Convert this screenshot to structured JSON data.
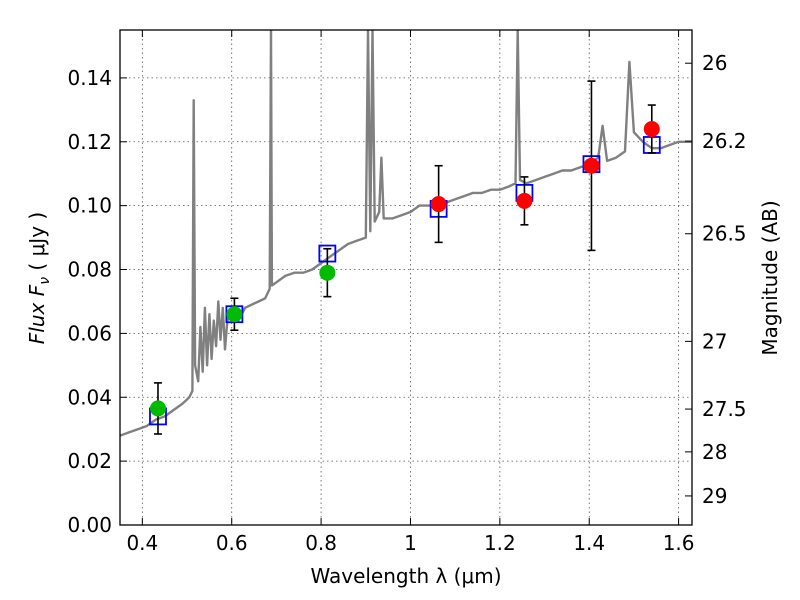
{
  "chart_data": {
    "type": "scatter",
    "xlabel": "Wavelength  λ (μm)",
    "ylabel": "Flux  F",
    "ylabel_sub": "ν",
    "ylabel_unit": "  ( μJy )",
    "y2label": "Magnitude (AB)",
    "xlim": [
      0.35,
      1.63
    ],
    "ylim": [
      0.0,
      0.155
    ],
    "grid": true,
    "x_ticks": [
      0.4,
      0.6,
      0.8,
      1.0,
      1.2,
      1.4,
      1.6
    ],
    "x_tick_labels": [
      "0.4",
      "0.6",
      "0.8",
      "1",
      "1.2",
      "1.4",
      "1.6"
    ],
    "y_ticks": [
      0.0,
      0.02,
      0.04,
      0.06,
      0.08,
      0.1,
      0.12,
      0.14
    ],
    "y_tick_labels": [
      "0.00",
      "0.02",
      "0.04",
      "0.06",
      "0.08",
      "0.10",
      "0.12",
      "0.14"
    ],
    "y2_ticks": [
      {
        "label": "26",
        "flux": 0.1446
      },
      {
        "label": "26.2",
        "flux": 0.1202
      },
      {
        "label": "26.5",
        "flux": 0.0912
      },
      {
        "label": "27",
        "flux": 0.0575
      },
      {
        "label": "27.5",
        "flux": 0.0363
      },
      {
        "label": "28",
        "flux": 0.0229
      },
      {
        "label": "29",
        "flux": 0.0091
      }
    ],
    "colors": {
      "model": "#808080",
      "green": "#00bb00",
      "red": "#ff0000",
      "box": "#0000ff",
      "errorbar": "#000000"
    },
    "model_spectrum": [
      [
        0.35,
        0.028
      ],
      [
        0.37,
        0.029
      ],
      [
        0.39,
        0.03
      ],
      [
        0.41,
        0.031
      ],
      [
        0.43,
        0.033
      ],
      [
        0.45,
        0.034
      ],
      [
        0.47,
        0.036
      ],
      [
        0.49,
        0.038
      ],
      [
        0.505,
        0.04
      ],
      [
        0.512,
        0.042
      ],
      [
        0.515,
        0.133
      ],
      [
        0.518,
        0.05
      ],
      [
        0.525,
        0.045
      ],
      [
        0.53,
        0.062
      ],
      [
        0.535,
        0.048
      ],
      [
        0.54,
        0.068
      ],
      [
        0.545,
        0.05
      ],
      [
        0.55,
        0.066
      ],
      [
        0.555,
        0.052
      ],
      [
        0.56,
        0.064
      ],
      [
        0.565,
        0.056
      ],
      [
        0.57,
        0.07
      ],
      [
        0.575,
        0.058
      ],
      [
        0.58,
        0.068
      ],
      [
        0.585,
        0.055
      ],
      [
        0.59,
        0.064
      ],
      [
        0.6,
        0.066
      ],
      [
        0.615,
        0.064
      ],
      [
        0.63,
        0.068
      ],
      [
        0.645,
        0.069
      ],
      [
        0.66,
        0.07
      ],
      [
        0.675,
        0.071
      ],
      [
        0.685,
        0.074
      ],
      [
        0.688,
        0.155
      ],
      [
        0.69,
        0.075
      ],
      [
        0.7,
        0.076
      ],
      [
        0.72,
        0.078
      ],
      [
        0.74,
        0.079
      ],
      [
        0.76,
        0.079
      ],
      [
        0.78,
        0.08
      ],
      [
        0.8,
        0.082
      ],
      [
        0.82,
        0.084
      ],
      [
        0.84,
        0.086
      ],
      [
        0.86,
        0.088
      ],
      [
        0.88,
        0.089
      ],
      [
        0.9,
        0.09
      ],
      [
        0.905,
        0.155
      ],
      [
        0.91,
        0.092
      ],
      [
        0.915,
        0.155
      ],
      [
        0.92,
        0.095
      ],
      [
        0.93,
        0.098
      ],
      [
        0.935,
        0.115
      ],
      [
        0.94,
        0.096
      ],
      [
        0.96,
        0.096
      ],
      [
        0.98,
        0.097
      ],
      [
        1.0,
        0.098
      ],
      [
        1.02,
        0.1
      ],
      [
        1.04,
        0.1
      ],
      [
        1.06,
        0.1
      ],
      [
        1.08,
        0.101
      ],
      [
        1.1,
        0.102
      ],
      [
        1.12,
        0.103
      ],
      [
        1.14,
        0.104
      ],
      [
        1.16,
        0.104
      ],
      [
        1.18,
        0.105
      ],
      [
        1.2,
        0.105
      ],
      [
        1.22,
        0.106
      ],
      [
        1.235,
        0.107
      ],
      [
        1.24,
        0.155
      ],
      [
        1.245,
        0.108
      ],
      [
        1.26,
        0.107
      ],
      [
        1.28,
        0.108
      ],
      [
        1.3,
        0.109
      ],
      [
        1.32,
        0.11
      ],
      [
        1.34,
        0.111
      ],
      [
        1.36,
        0.111
      ],
      [
        1.38,
        0.112
      ],
      [
        1.4,
        0.113
      ],
      [
        1.42,
        0.115
      ],
      [
        1.43,
        0.125
      ],
      [
        1.44,
        0.114
      ],
      [
        1.46,
        0.115
      ],
      [
        1.48,
        0.117
      ],
      [
        1.49,
        0.145
      ],
      [
        1.5,
        0.123
      ],
      [
        1.52,
        0.12
      ],
      [
        1.54,
        0.118
      ],
      [
        1.56,
        0.118
      ],
      [
        1.58,
        0.119
      ],
      [
        1.6,
        0.12
      ],
      [
        1.63,
        0.12
      ]
    ],
    "synthetic_photometry": [
      {
        "x": 0.435,
        "y": 0.034
      },
      {
        "x": 0.606,
        "y": 0.066
      },
      {
        "x": 0.814,
        "y": 0.085
      },
      {
        "x": 1.063,
        "y": 0.099
      },
      {
        "x": 1.255,
        "y": 0.104
      },
      {
        "x": 1.405,
        "y": 0.113
      },
      {
        "x": 1.54,
        "y": 0.119
      }
    ],
    "observed_green": [
      {
        "x": 0.435,
        "y": 0.0365,
        "err_lo": 0.008,
        "err_hi": 0.008
      },
      {
        "x": 0.606,
        "y": 0.066,
        "err_lo": 0.005,
        "err_hi": 0.005
      },
      {
        "x": 0.814,
        "y": 0.079,
        "err_lo": 0.0075,
        "err_hi": 0.0075
      }
    ],
    "observed_red": [
      {
        "x": 1.063,
        "y": 0.1005,
        "err_lo": 0.012,
        "err_hi": 0.012
      },
      {
        "x": 1.255,
        "y": 0.1015,
        "err_lo": 0.0075,
        "err_hi": 0.0075
      },
      {
        "x": 1.405,
        "y": 0.1125,
        "err_lo": 0.0265,
        "err_hi": 0.0265
      },
      {
        "x": 1.54,
        "y": 0.124,
        "err_lo": 0.0075,
        "err_hi": 0.0075
      }
    ]
  }
}
